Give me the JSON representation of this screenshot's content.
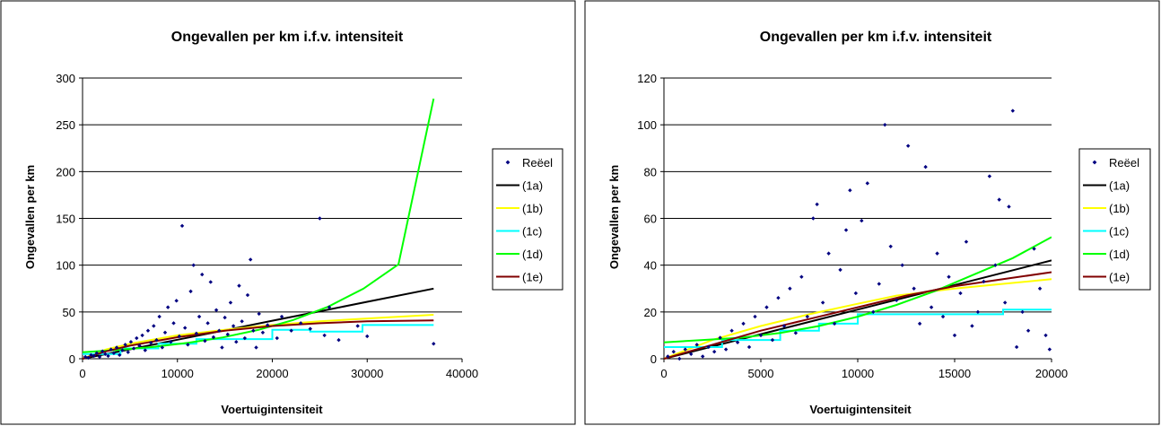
{
  "chart_data": [
    {
      "type": "scatter",
      "title": "Ongevallen per km i.f.v. intensiteit",
      "xlabel": "Voertuigintensiteit",
      "ylabel": "Ongevallen per km",
      "xlim": [
        0,
        40000
      ],
      "ylim": [
        0,
        300
      ],
      "xticks": [
        0,
        10000,
        20000,
        30000,
        40000
      ],
      "yticks": [
        0,
        50,
        100,
        150,
        200,
        250,
        300
      ],
      "grid": "horizontal",
      "legend_position": "right",
      "series": [
        {
          "name": "Reëel",
          "kind": "scatter",
          "color": "#000080",
          "points": [
            [
              300,
              2
            ],
            [
              600,
              1
            ],
            [
              900,
              4
            ],
            [
              1200,
              3
            ],
            [
              1500,
              6
            ],
            [
              1800,
              2
            ],
            [
              2100,
              8
            ],
            [
              2400,
              5
            ],
            [
              2700,
              3
            ],
            [
              3000,
              10
            ],
            [
              3300,
              6
            ],
            [
              3600,
              12
            ],
            [
              3900,
              4
            ],
            [
              4200,
              9
            ],
            [
              4500,
              15
            ],
            [
              4800,
              7
            ],
            [
              5100,
              18
            ],
            [
              5400,
              11
            ],
            [
              5700,
              22
            ],
            [
              6000,
              14
            ],
            [
              6300,
              25
            ],
            [
              6600,
              9
            ],
            [
              6900,
              30
            ],
            [
              7200,
              17
            ],
            [
              7500,
              35
            ],
            [
              7800,
              20
            ],
            [
              8100,
              45
            ],
            [
              8400,
              12
            ],
            [
              8700,
              28
            ],
            [
              9000,
              55
            ],
            [
              9300,
              18
            ],
            [
              9600,
              38
            ],
            [
              9900,
              62
            ],
            [
              10200,
              24
            ],
            [
              10500,
              142
            ],
            [
              10800,
              33
            ],
            [
              11100,
              15
            ],
            [
              11400,
              72
            ],
            [
              11700,
              100
            ],
            [
              12000,
              27
            ],
            [
              12300,
              45
            ],
            [
              12600,
              90
            ],
            [
              12900,
              19
            ],
            [
              13200,
              38
            ],
            [
              13500,
              82
            ],
            [
              13800,
              23
            ],
            [
              14100,
              52
            ],
            [
              14400,
              30
            ],
            [
              14700,
              12
            ],
            [
              15000,
              44
            ],
            [
              15300,
              26
            ],
            [
              15600,
              60
            ],
            [
              15900,
              35
            ],
            [
              16200,
              18
            ],
            [
              16500,
              78
            ],
            [
              16800,
              40
            ],
            [
              17100,
              22
            ],
            [
              17400,
              68
            ],
            [
              17700,
              106
            ],
            [
              18000,
              30
            ],
            [
              18300,
              12
            ],
            [
              18600,
              48
            ],
            [
              19000,
              28
            ],
            [
              19500,
              36
            ],
            [
              20500,
              22
            ],
            [
              21000,
              45
            ],
            [
              22000,
              30
            ],
            [
              23000,
              38
            ],
            [
              24000,
              32
            ],
            [
              25000,
              150
            ],
            [
              25500,
              25
            ],
            [
              26000,
              55
            ],
            [
              27000,
              20
            ],
            [
              29000,
              35
            ],
            [
              30000,
              24
            ],
            [
              37000,
              16
            ]
          ]
        },
        {
          "name": "(1a)",
          "kind": "line",
          "color": "#000000",
          "points": [
            [
              0,
              0
            ],
            [
              5000,
              10.1
            ],
            [
              10000,
              20.3
            ],
            [
              15000,
              30.4
            ],
            [
              20000,
              40.6
            ],
            [
              25000,
              50.7
            ],
            [
              30000,
              60.9
            ],
            [
              37000,
              75
            ]
          ]
        },
        {
          "name": "(1b)",
          "kind": "line",
          "color": "#ffff00",
          "points": [
            [
              0,
              0
            ],
            [
              2500,
              10
            ],
            [
              5000,
              16
            ],
            [
              10000,
              25
            ],
            [
              15000,
              31
            ],
            [
              20000,
              36
            ],
            [
              25000,
              40
            ],
            [
              30000,
              43
            ],
            [
              37000,
              47
            ]
          ]
        },
        {
          "name": "(1c)",
          "kind": "step",
          "color": "#00ffff",
          "points": [
            [
              0,
              5
            ],
            [
              4000,
              5
            ],
            [
              4000,
              11
            ],
            [
              8000,
              11
            ],
            [
              8000,
              16
            ],
            [
              12000,
              16
            ],
            [
              12000,
              21
            ],
            [
              20000,
              21
            ],
            [
              20000,
              31
            ],
            [
              24000,
              31
            ],
            [
              24000,
              29
            ],
            [
              29500,
              29
            ],
            [
              29500,
              36
            ],
            [
              37000,
              36
            ]
          ]
        },
        {
          "name": "(1d)",
          "kind": "line",
          "color": "#00ff00",
          "points": [
            [
              0,
              7
            ],
            [
              3700,
              9.4
            ],
            [
              7400,
              12.6
            ],
            [
              11100,
              17
            ],
            [
              14800,
              22.8
            ],
            [
              18500,
              30.8
            ],
            [
              22200,
              41.4
            ],
            [
              25900,
              55.7
            ],
            [
              29600,
              74.9
            ],
            [
              33300,
              100.8
            ],
            [
              37000,
              278
            ]
          ]
        },
        {
          "name": "(1e)",
          "kind": "line",
          "color": "#800000",
          "points": [
            [
              0,
              0
            ],
            [
              2500,
              8
            ],
            [
              5000,
              14
            ],
            [
              10000,
              23
            ],
            [
              15000,
              30
            ],
            [
              20000,
              35
            ],
            [
              25000,
              38
            ],
            [
              30000,
              40
            ],
            [
              37000,
              41
            ]
          ]
        }
      ]
    },
    {
      "type": "scatter",
      "title": "Ongevallen per km i.f.v. intensiteit",
      "xlabel": "Voertuigintensiteit",
      "ylabel": "Ongevallen per km",
      "xlim": [
        0,
        20000
      ],
      "ylim": [
        0,
        120
      ],
      "xticks": [
        0,
        5000,
        10000,
        15000,
        20000
      ],
      "yticks": [
        0,
        20,
        40,
        60,
        80,
        100,
        120
      ],
      "grid": "horizontal",
      "legend_position": "right",
      "series": [
        {
          "name": "Reëel",
          "kind": "scatter",
          "color": "#000080",
          "points": [
            [
              200,
              1
            ],
            [
              500,
              3
            ],
            [
              800,
              0
            ],
            [
              1100,
              4
            ],
            [
              1400,
              2
            ],
            [
              1700,
              6
            ],
            [
              2000,
              1
            ],
            [
              2300,
              5
            ],
            [
              2600,
              3
            ],
            [
              2900,
              9
            ],
            [
              3200,
              4
            ],
            [
              3500,
              12
            ],
            [
              3800,
              7
            ],
            [
              4100,
              15
            ],
            [
              4400,
              5
            ],
            [
              4700,
              18
            ],
            [
              5000,
              10
            ],
            [
              5300,
              22
            ],
            [
              5600,
              8
            ],
            [
              5900,
              26
            ],
            [
              6200,
              14
            ],
            [
              6500,
              30
            ],
            [
              6800,
              11
            ],
            [
              7100,
              35
            ],
            [
              7400,
              18
            ],
            [
              7700,
              60
            ],
            [
              7900,
              66
            ],
            [
              8200,
              24
            ],
            [
              8500,
              45
            ],
            [
              8800,
              15
            ],
            [
              9100,
              38
            ],
            [
              9400,
              55
            ],
            [
              9600,
              72
            ],
            [
              9900,
              28
            ],
            [
              10200,
              59
            ],
            [
              10500,
              75
            ],
            [
              10800,
              20
            ],
            [
              11100,
              32
            ],
            [
              11400,
              100
            ],
            [
              11700,
              48
            ],
            [
              12000,
              25
            ],
            [
              12300,
              40
            ],
            [
              12600,
              91
            ],
            [
              12900,
              30
            ],
            [
              13200,
              15
            ],
            [
              13500,
              82
            ],
            [
              13800,
              22
            ],
            [
              14100,
              45
            ],
            [
              14400,
              18
            ],
            [
              14700,
              35
            ],
            [
              15000,
              10
            ],
            [
              15300,
              28
            ],
            [
              15600,
              50
            ],
            [
              15900,
              14
            ],
            [
              16200,
              20
            ],
            [
              16500,
              33
            ],
            [
              16800,
              78
            ],
            [
              17100,
              40
            ],
            [
              17300,
              68
            ],
            [
              17600,
              24
            ],
            [
              17800,
              65
            ],
            [
              18000,
              106
            ],
            [
              18200,
              5
            ],
            [
              18500,
              20
            ],
            [
              18800,
              12
            ],
            [
              19100,
              47
            ],
            [
              19400,
              30
            ],
            [
              19700,
              10
            ],
            [
              19900,
              4
            ]
          ]
        },
        {
          "name": "(1a)",
          "kind": "line",
          "color": "#000000",
          "points": [
            [
              0,
              0
            ],
            [
              5000,
              10.5
            ],
            [
              10000,
              21
            ],
            [
              15000,
              31.5
            ],
            [
              20000,
              42
            ]
          ]
        },
        {
          "name": "(1b)",
          "kind": "line",
          "color": "#ffff00",
          "points": [
            [
              0,
              0
            ],
            [
              2500,
              8
            ],
            [
              5000,
              14
            ],
            [
              7500,
              19
            ],
            [
              10000,
              23.5
            ],
            [
              12000,
              27
            ],
            [
              15000,
              30
            ],
            [
              17500,
              32
            ],
            [
              20000,
              34
            ]
          ]
        },
        {
          "name": "(1c)",
          "kind": "step",
          "color": "#00ffff",
          "points": [
            [
              0,
              5
            ],
            [
              3000,
              5
            ],
            [
              3000,
              8
            ],
            [
              6000,
              8
            ],
            [
              6000,
              12
            ],
            [
              8000,
              12
            ],
            [
              8000,
              15
            ],
            [
              10000,
              15
            ],
            [
              10000,
              19
            ],
            [
              17500,
              19
            ],
            [
              17500,
              21
            ],
            [
              20000,
              21
            ]
          ]
        },
        {
          "name": "(1d)",
          "kind": "line",
          "color": "#00ff00",
          "points": [
            [
              0,
              7
            ],
            [
              2000,
              8
            ],
            [
              4000,
              9
            ],
            [
              6000,
              11
            ],
            [
              8000,
              14
            ],
            [
              10000,
              18
            ],
            [
              12000,
              23
            ],
            [
              14000,
              29
            ],
            [
              16000,
              36
            ],
            [
              18000,
              43
            ],
            [
              20000,
              52
            ]
          ]
        },
        {
          "name": "(1e)",
          "kind": "line",
          "color": "#800000",
          "points": [
            [
              0,
              0
            ],
            [
              2500,
              6
            ],
            [
              5000,
              12
            ],
            [
              7500,
              17
            ],
            [
              10000,
              22
            ],
            [
              12500,
              27
            ],
            [
              15000,
              31
            ],
            [
              17500,
              34
            ],
            [
              20000,
              37
            ]
          ]
        }
      ]
    }
  ]
}
